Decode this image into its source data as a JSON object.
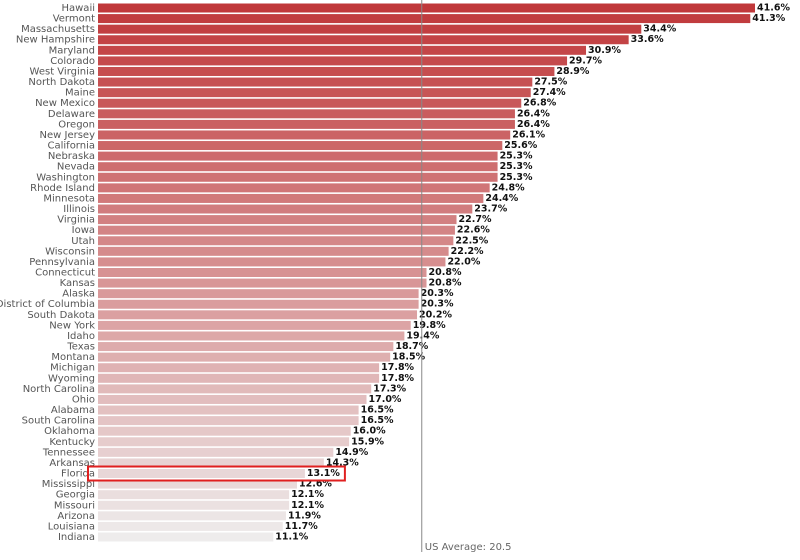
{
  "chart_data": {
    "type": "bar",
    "orientation": "horizontal",
    "categories": [
      "Hawaii",
      "Vermont",
      "Massachusetts",
      "New Hampshire",
      "Maryland",
      "Colorado",
      "West Virginia",
      "North Dakota",
      "Maine",
      "New Mexico",
      "Delaware",
      "Oregon",
      "New Jersey",
      "California",
      "Nebraska",
      "Nevada",
      "Washington",
      "Rhode Island",
      "Minnesota",
      "Illinois",
      "Virginia",
      "Iowa",
      "Utah",
      "Wisconsin",
      "Pennsylvania",
      "Connecticut",
      "Kansas",
      "Alaska",
      "District of Columbia",
      "South Dakota",
      "New York",
      "Idaho",
      "Texas",
      "Montana",
      "Michigan",
      "Wyoming",
      "North Carolina",
      "Ohio",
      "Alabama",
      "South Carolina",
      "Oklahoma",
      "Kentucky",
      "Tennessee",
      "Arkansas",
      "Florida",
      "Mississippi",
      "Georgia",
      "Missouri",
      "Arizona",
      "Louisiana",
      "Indiana"
    ],
    "values": [
      41.6,
      41.3,
      34.4,
      33.6,
      30.9,
      29.7,
      28.9,
      27.5,
      27.4,
      26.8,
      26.4,
      26.4,
      26.1,
      25.6,
      25.3,
      25.3,
      25.3,
      24.8,
      24.4,
      23.7,
      22.7,
      22.6,
      22.5,
      22.2,
      22.0,
      20.8,
      20.8,
      20.3,
      20.3,
      20.2,
      19.8,
      19.4,
      18.7,
      18.5,
      17.8,
      17.8,
      17.3,
      17.0,
      16.5,
      16.5,
      16.0,
      15.9,
      14.9,
      14.3,
      13.1,
      12.6,
      12.1,
      12.1,
      11.9,
      11.7,
      11.1
    ],
    "value_labels": [
      "41.6%",
      "41.3%",
      "34.4%",
      "33.6%",
      "30.9%",
      "29.7%",
      "28.9%",
      "27.5%",
      "27.4%",
      "26.8%",
      "26.4%",
      "26.4%",
      "26.1%",
      "25.6%",
      "25.3%",
      "25.3%",
      "25.3%",
      "24.8%",
      "24.4%",
      "23.7%",
      "22.7%",
      "22.6%",
      "22.5%",
      "22.2%",
      "22.0%",
      "20.8%",
      "20.8%",
      "20.3%",
      "20.3%",
      "20.2%",
      "19.8%",
      "19.4%",
      "18.7%",
      "18.5%",
      "17.8%",
      "17.8%",
      "17.3%",
      "17.0%",
      "16.5%",
      "16.5%",
      "16.0%",
      "15.9%",
      "14.9%",
      "14.3%",
      "13.1%",
      "12.6%",
      "12.1%",
      "12.1%",
      "11.9%",
      "11.7%",
      "11.1%"
    ],
    "color_range": [
      "#c0383a",
      "#eeecec"
    ],
    "reference_value": 20.5,
    "reference_label": "US Average: 20.5",
    "highlight_index": 44,
    "highlight_color": "#e02020"
  }
}
